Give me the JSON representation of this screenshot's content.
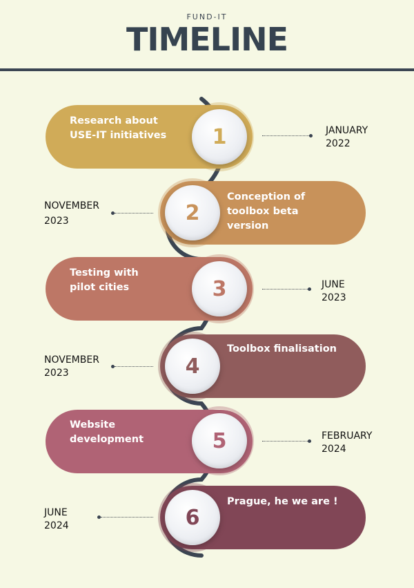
{
  "header": {
    "kicker": "FUND-IT",
    "title": "TIMELINE"
  },
  "colors": {
    "background": "#f6f8e4",
    "rule": "#3b4552",
    "steps": [
      "#d0ab58",
      "#c8925a",
      "#bd7766",
      "#905c5c",
      "#b06375",
      "#814656"
    ]
  },
  "steps": [
    {
      "number": "1",
      "label": "Research about USE-IT initiatives",
      "month": "JANUARY",
      "year": "2022"
    },
    {
      "number": "2",
      "label": "Conception of toolbox beta version",
      "month": "NOVEMBER",
      "year": "2023"
    },
    {
      "number": "3",
      "label": "Testing with pilot cities",
      "month": "JUNE",
      "year": "2023"
    },
    {
      "number": "4",
      "label": "Toolbox finalisation",
      "month": "NOVEMBER",
      "year": "2023"
    },
    {
      "number": "5",
      "label": "Website development",
      "month": "FEBRUARY",
      "year": "2024"
    },
    {
      "number": "6",
      "label": "Prague, he we are !",
      "month": "JUNE",
      "year": "2024"
    }
  ]
}
